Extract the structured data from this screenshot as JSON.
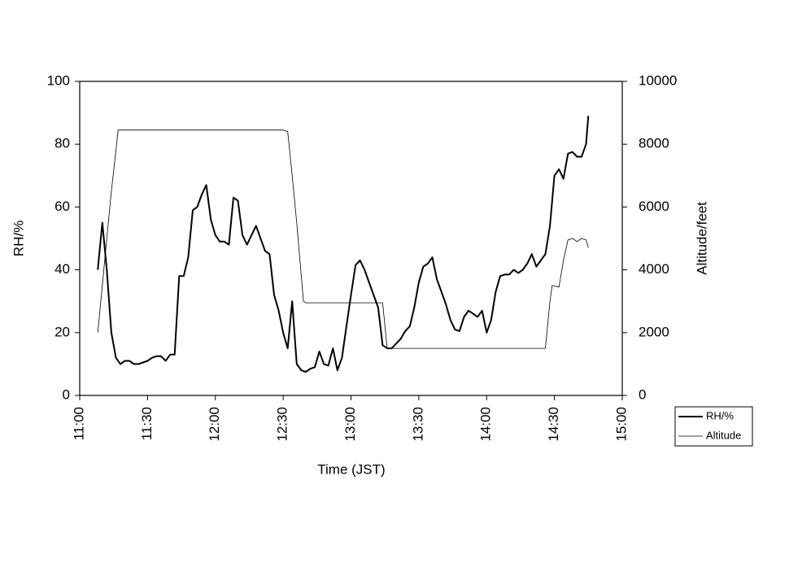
{
  "chart_data": {
    "type": "line",
    "x_label": "Time (JST)",
    "y_label": "RH/%",
    "y2_label": "Altitude/feet",
    "xlim": [
      660,
      900
    ],
    "xticks": [
      {
        "value": 660,
        "label": "11:00"
      },
      {
        "value": 690,
        "label": "11:30"
      },
      {
        "value": 720,
        "label": "12:00"
      },
      {
        "value": 750,
        "label": "12:30"
      },
      {
        "value": 780,
        "label": "13:00"
      },
      {
        "value": 810,
        "label": "13:30"
      },
      {
        "value": 840,
        "label": "14:00"
      },
      {
        "value": 870,
        "label": "14:30"
      },
      {
        "value": 900,
        "label": "15:00"
      }
    ],
    "ylim": [
      0,
      100
    ],
    "yticks": [
      0,
      20,
      40,
      60,
      80,
      100
    ],
    "y2lim": [
      0,
      10000
    ],
    "y2ticks": [
      0,
      2000,
      4000,
      6000,
      8000,
      10000
    ],
    "legend": "right",
    "series": [
      {
        "name": "RH/%",
        "color": "#000000",
        "line_width": 2,
        "x": [
          668,
          670,
          672,
          674,
          676,
          678,
          680,
          682,
          684,
          686,
          688,
          690,
          692,
          694,
          696,
          698,
          700,
          702,
          704,
          706,
          708,
          710,
          712,
          714,
          716,
          718,
          720,
          722,
          724,
          726,
          728,
          730,
          732,
          734,
          736,
          738,
          740,
          742,
          744,
          746,
          748,
          750,
          752,
          754,
          756,
          758,
          760,
          762,
          764,
          766,
          768,
          770,
          772,
          774,
          776,
          778,
          780,
          782,
          784,
          786,
          788,
          790,
          792,
          794,
          796,
          798,
          800,
          802,
          804,
          806,
          808,
          810,
          812,
          814,
          816,
          818,
          820,
          822,
          824,
          826,
          828,
          830,
          832,
          834,
          836,
          838,
          840,
          842,
          844,
          846,
          848,
          850,
          852,
          854,
          856,
          858,
          860,
          862,
          864,
          866,
          868,
          870,
          872,
          874,
          876,
          878,
          880,
          882,
          884,
          885
        ],
        "values": [
          40,
          55,
          40,
          20,
          12,
          10,
          11,
          11,
          10,
          10,
          10.5,
          11,
          12,
          12.5,
          12.5,
          11,
          13,
          13,
          38,
          38,
          44,
          59,
          60,
          64,
          67,
          56,
          51,
          49,
          49,
          48,
          63,
          62,
          51,
          48,
          51,
          54,
          50,
          46,
          45,
          32,
          27,
          20,
          15,
          30,
          10,
          8,
          7.5,
          8.5,
          9,
          14,
          10,
          9.5,
          15,
          8,
          12,
          22,
          32,
          41.5,
          43,
          40,
          36,
          32,
          28,
          16,
          15,
          15,
          16.5,
          18,
          20.5,
          22,
          28,
          36,
          41,
          42,
          44,
          37,
          33,
          29,
          24,
          21,
          20.5,
          25,
          27,
          26,
          25,
          27,
          20,
          24,
          33,
          38,
          38.5,
          38.5,
          40,
          39,
          40,
          42,
          45,
          41,
          43,
          45,
          54,
          70,
          72,
          69,
          77,
          77.5,
          76,
          76,
          80,
          89
        ]
      },
      {
        "name": "Altitude",
        "color": "#000000",
        "line_width": 0.8,
        "axis": "y2",
        "x": [
          668,
          670,
          672,
          674,
          676,
          677,
          700,
          720,
          740,
          750,
          752,
          754,
          756,
          758,
          759,
          760,
          780,
          794,
          796,
          820,
          840,
          866,
          868,
          869,
          872,
          874,
          876,
          878,
          880,
          882,
          884,
          885
        ],
        "values": [
          2000,
          3500,
          5000,
          6500,
          7800,
          8450,
          8450,
          8450,
          8450,
          8450,
          8400,
          7000,
          5500,
          3800,
          3000,
          2950,
          2950,
          2950,
          1500,
          1500,
          1500,
          1500,
          3000,
          3500,
          3450,
          4300,
          4950,
          5000,
          4900,
          5000,
          4950,
          4700
        ]
      }
    ]
  }
}
